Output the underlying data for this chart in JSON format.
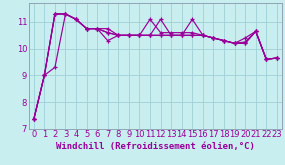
{
  "xlabel": "Windchill (Refroidissement éolien,°C)",
  "background_color": "#c8eef0",
  "line_color": "#990099",
  "grid_color": "#a0d0d8",
  "x": [
    0,
    1,
    2,
    3,
    4,
    5,
    6,
    7,
    8,
    9,
    10,
    11,
    12,
    13,
    14,
    15,
    16,
    17,
    18,
    19,
    20,
    21,
    22,
    23
  ],
  "series": [
    [
      7.35,
      9.0,
      11.3,
      11.3,
      11.1,
      10.75,
      10.75,
      10.75,
      10.5,
      10.5,
      10.5,
      10.5,
      10.5,
      10.5,
      10.5,
      10.5,
      10.5,
      10.4,
      10.3,
      10.2,
      10.25,
      10.65,
      9.6,
      9.65
    ],
    [
      7.35,
      9.0,
      11.3,
      11.3,
      11.1,
      10.75,
      10.75,
      10.6,
      10.5,
      10.5,
      10.5,
      10.5,
      10.5,
      10.5,
      10.5,
      11.1,
      10.5,
      10.4,
      10.3,
      10.2,
      10.2,
      10.65,
      9.6,
      9.65
    ],
    [
      7.35,
      9.0,
      9.3,
      11.3,
      11.1,
      10.75,
      10.75,
      10.3,
      10.5,
      10.5,
      10.5,
      10.5,
      11.1,
      10.5,
      10.5,
      10.5,
      10.5,
      10.4,
      10.3,
      10.2,
      10.4,
      10.65,
      9.6,
      9.65
    ],
    [
      7.35,
      9.0,
      11.3,
      11.3,
      11.1,
      10.75,
      10.75,
      10.6,
      10.5,
      10.5,
      10.5,
      11.1,
      10.6,
      10.6,
      10.6,
      10.6,
      10.5,
      10.4,
      10.3,
      10.2,
      10.2,
      10.65,
      9.6,
      9.65
    ]
  ],
  "ylim": [
    7.0,
    11.7
  ],
  "yticks": [
    7,
    8,
    9,
    10,
    11
  ],
  "xlim": [
    -0.5,
    23.5
  ],
  "xticks": [
    0,
    1,
    2,
    3,
    4,
    5,
    6,
    7,
    8,
    9,
    10,
    11,
    12,
    13,
    14,
    15,
    16,
    17,
    18,
    19,
    20,
    21,
    22,
    23
  ],
  "xtick_labels": [
    "0",
    "1",
    "2",
    "3",
    "4",
    "5",
    "6",
    "7",
    "8",
    "9",
    "10",
    "11",
    "12",
    "13",
    "14",
    "15",
    "16",
    "17",
    "18",
    "19",
    "20",
    "21",
    "22",
    "23"
  ],
  "xlabel_fontsize": 6.5,
  "tick_fontsize": 6.0,
  "markersize": 3.5,
  "linewidth": 0.85
}
